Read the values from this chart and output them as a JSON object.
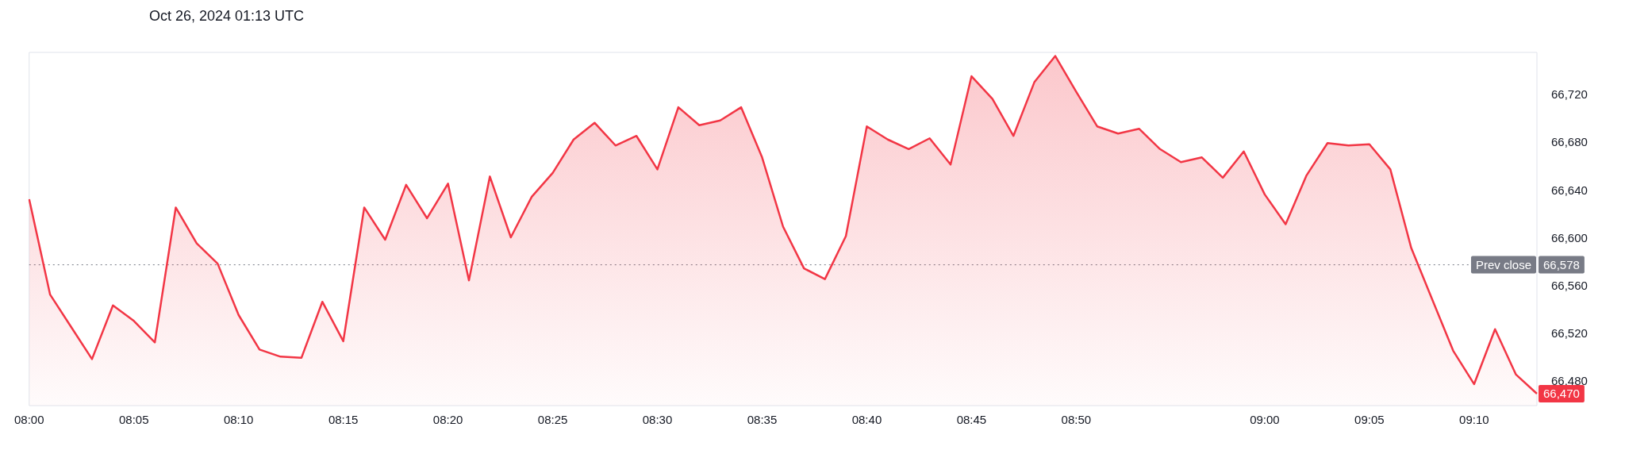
{
  "chart_data": {
    "type": "area",
    "title": "Oct 26, 2024 01:13 UTC",
    "categories": [
      "08:00",
      null,
      null,
      null,
      null,
      "08:05",
      null,
      null,
      null,
      null,
      "08:10",
      null,
      null,
      null,
      null,
      "08:15",
      null,
      null,
      null,
      null,
      "08:20",
      null,
      null,
      null,
      null,
      "08:25",
      null,
      null,
      null,
      null,
      "08:30",
      null,
      null,
      null,
      null,
      "08:35",
      null,
      null,
      null,
      null,
      "08:40",
      null,
      null,
      null,
      null,
      "08:45",
      null,
      null,
      null,
      null,
      "08:50",
      null,
      null,
      null,
      null,
      null,
      null,
      null,
      null,
      "09:00",
      null,
      null,
      null,
      null,
      "09:05",
      null,
      null,
      null,
      null,
      "09:10",
      null,
      null,
      null
    ],
    "series": [
      {
        "color": "#f23645",
        "values": [
          66633,
          66553,
          66526,
          66499,
          66544,
          66531,
          66513,
          66626,
          66596,
          66579,
          66536,
          66507,
          66501,
          66500,
          66547,
          66514,
          66626,
          66599,
          66645,
          66617,
          66646,
          66565,
          66652,
          66601,
          66635,
          66655,
          66683,
          66697,
          66678,
          66686,
          66658,
          66710,
          66695,
          66699,
          66710,
          66668,
          66610,
          66575,
          66566,
          66602,
          66694,
          66683,
          66675,
          66684,
          66662,
          66736,
          66717,
          66686,
          66731,
          66753,
          66723,
          66694,
          66688,
          66692,
          66675,
          66664,
          66668,
          66651,
          66673,
          66637,
          66612,
          66653,
          66680,
          66678,
          66679,
          66658,
          66592,
          66549,
          66506,
          66478,
          66524,
          66486,
          66470
        ],
        "value_labels": [
          null,
          null,
          null,
          null,
          null,
          null,
          null,
          null,
          null,
          null,
          null,
          null,
          null,
          null,
          null,
          null,
          null,
          null,
          null,
          null,
          null,
          null,
          null,
          null,
          null,
          null,
          null,
          null,
          null,
          null,
          null,
          null,
          null,
          null,
          null,
          null,
          null,
          null,
          null,
          null,
          null,
          null,
          null,
          null,
          null,
          null,
          null,
          null,
          null,
          null,
          null,
          null,
          null,
          null,
          null,
          null,
          null,
          null,
          null,
          null,
          null,
          null,
          null,
          null,
          null,
          null,
          null,
          null,
          null,
          null,
          null,
          null,
          "66,470"
        ]
      }
    ],
    "ylim": [
      66460,
      66756
    ],
    "yticks": [
      {
        "value": 66480,
        "label": "66,480"
      },
      {
        "value": 66520,
        "label": "66,520"
      },
      {
        "value": 66560,
        "label": "66,560"
      },
      {
        "value": 66600,
        "label": "66,600"
      },
      {
        "value": 66640,
        "label": "66,640"
      },
      {
        "value": 66680,
        "label": "66,680"
      },
      {
        "value": 66720,
        "label": "66,720"
      }
    ],
    "ref_lines": [
      {
        "axis": "y",
        "value": 66578,
        "label": "Prev close",
        "color": "#787b86",
        "line_style": "dotted"
      }
    ],
    "annotations": [
      "66,578"
    ],
    "grid": false,
    "legend": false
  }
}
